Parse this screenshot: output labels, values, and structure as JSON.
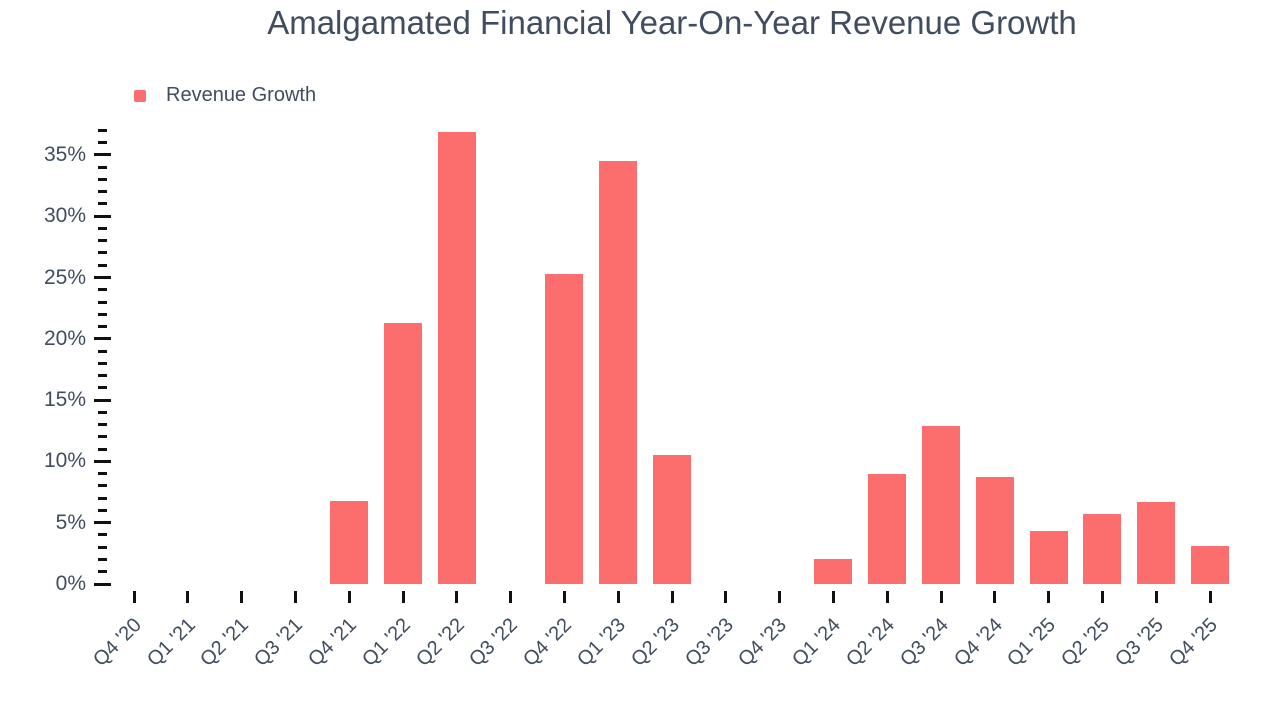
{
  "title": "Amalgamated Financial Year-On-Year Revenue Growth",
  "legend": {
    "items": [
      {
        "label": "Revenue Growth",
        "color": "#fc6d6d"
      }
    ]
  },
  "colors": {
    "bar": "#fc6d6d",
    "text": "#414d5e",
    "tick": "#111111",
    "background": "#ffffff"
  },
  "chart_data": {
    "type": "bar",
    "title": "Amalgamated Financial Year-On-Year Revenue Growth",
    "xlabel": "",
    "ylabel": "",
    "categories": [
      "Q4 '20",
      "Q1 '21",
      "Q2 '21",
      "Q3 '21",
      "Q4 '21",
      "Q1 '22",
      "Q2 '22",
      "Q3 '22",
      "Q4 '22",
      "Q1 '23",
      "Q2 '23",
      "Q3 '23",
      "Q4 '23",
      "Q1 '24",
      "Q2 '24",
      "Q3 '24",
      "Q4 '24",
      "Q1 '25",
      "Q2 '25",
      "Q3 '25",
      "Q4 '25"
    ],
    "series": [
      {
        "name": "Revenue Growth",
        "color": "#fc6d6d",
        "values": [
          null,
          null,
          null,
          null,
          6.8,
          21.3,
          36.9,
          null,
          25.3,
          34.5,
          10.5,
          null,
          null,
          2.0,
          9.0,
          12.9,
          8.7,
          4.3,
          5.7,
          6.7,
          3.1
        ]
      }
    ],
    "value_unit": "%",
    "y_axis": {
      "min": 0,
      "max": 37,
      "major_step": 5,
      "minor_step": 1,
      "labels": [
        "0%",
        "5%",
        "10%",
        "15%",
        "20%",
        "25%",
        "30%",
        "35%"
      ]
    },
    "grid": false,
    "legend_position": "top-left",
    "notes": "Quarters with null have no bar drawn"
  }
}
